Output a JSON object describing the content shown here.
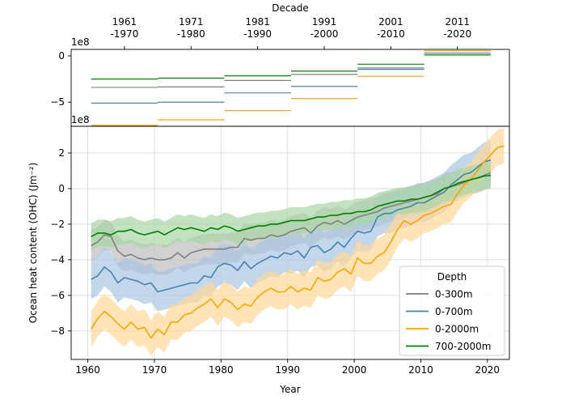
{
  "chart_data": [
    {
      "type": "line",
      "panel": "decadal",
      "top_xlabel": "Decade",
      "top_ticks": [
        "1961\n-1970",
        "1971\n-1980",
        "1981\n-1990",
        "1991\n-2000",
        "2001\n-2010",
        "2011\n-2020"
      ],
      "y_offset_label": "1e8",
      "yticks": [
        0,
        -5
      ],
      "ylim": [
        -7.6,
        0.7
      ],
      "decades": [
        [
          1961,
          1970
        ],
        [
          1971,
          1980
        ],
        [
          1981,
          1990
        ],
        [
          1991,
          2000
        ],
        [
          2001,
          2010
        ],
        [
          2011,
          2020
        ]
      ],
      "series": [
        {
          "name": "0-300m",
          "color": "#808080",
          "values": [
            -3.4,
            -3.35,
            -2.65,
            -2.0,
            -1.3,
            0.3
          ]
        },
        {
          "name": "0-700m",
          "color": "#4682b4",
          "values": [
            -5.1,
            -5.0,
            -4.0,
            -3.3,
            -1.45,
            0.3
          ]
        },
        {
          "name": "0-2000m",
          "color": "#ffa500",
          "values": [
            -7.5,
            -6.9,
            -5.9,
            -4.6,
            -2.2,
            0.55
          ]
        },
        {
          "name": "700-2000m",
          "color": "#008000",
          "values": [
            -2.5,
            -2.4,
            -2.15,
            -1.65,
            -0.9,
            0.1
          ]
        }
      ]
    },
    {
      "type": "line",
      "panel": "annual",
      "xlabel": "Year",
      "ylabel": "Ocean heat content (OHC) (Jm⁻²)",
      "xlim": [
        1957.5,
        2023.3
      ],
      "ylim": [
        -9.6,
        3.5
      ],
      "xticks": [
        1960,
        1970,
        1980,
        1990,
        2000,
        2010,
        2020
      ],
      "yticks": [
        2,
        0,
        -2,
        -4,
        -6,
        -8
      ],
      "grid": true,
      "legend_title": "Depth",
      "legend_position": "lower right",
      "x_start": 1960.5,
      "series": [
        {
          "name": "0-300m",
          "color": "#808080",
          "band_color": "#bdbdbd",
          "band_width": 0.85,
          "values": [
            -3.2,
            -3.0,
            -2.6,
            -2.7,
            -3.5,
            -3.8,
            -3.7,
            -3.9,
            -4.0,
            -3.9,
            -4.0,
            -4.0,
            -3.9,
            -3.6,
            -3.9,
            -3.6,
            -3.5,
            -3.4,
            -3.4,
            -3.4,
            -3.4,
            -3.3,
            -3.3,
            -2.8,
            -2.9,
            -2.8,
            -2.8,
            -2.6,
            -2.7,
            -2.6,
            -2.4,
            -2.3,
            -2.2,
            -2.5,
            -2.1,
            -1.9,
            -2.0,
            -1.8,
            -2.0,
            -1.8,
            -1.6,
            -1.5,
            -1.4,
            -1.3,
            -1.1,
            -1.0,
            -0.9,
            -0.8,
            -0.7,
            -0.6,
            -0.5,
            -0.4,
            -0.3,
            0.0,
            0.1,
            0.2,
            0.35,
            0.5,
            0.6,
            0.75,
            0.9
          ]
        },
        {
          "name": "0-700m",
          "color": "#4682b4",
          "band_color": "#a9c6e2",
          "band_width": 1.1,
          "values": [
            -5.1,
            -4.9,
            -4.4,
            -4.7,
            -5.3,
            -5.0,
            -5.1,
            -5.2,
            -5.4,
            -5.3,
            -5.8,
            -5.7,
            -5.6,
            -5.5,
            -5.4,
            -5.3,
            -5.3,
            -4.9,
            -5.0,
            -4.4,
            -4.2,
            -4.3,
            -4.6,
            -4.1,
            -4.5,
            -4.2,
            -4.0,
            -3.8,
            -3.9,
            -3.6,
            -3.7,
            -3.5,
            -3.9,
            -3.3,
            -3.2,
            -3.6,
            -3.4,
            -3.0,
            -3.3,
            -2.8,
            -2.4,
            -2.5,
            -2.4,
            -1.6,
            -1.4,
            -1.4,
            -1.2,
            -1.1,
            -1.0,
            -0.8,
            -0.8,
            -0.6,
            -0.4,
            -0.2,
            0.2,
            0.5,
            0.8,
            0.9,
            1.2,
            1.5,
            1.6
          ]
        },
        {
          "name": "0-2000m",
          "color": "#ffa500",
          "band_color": "#ffd99a",
          "band_width": 1.0,
          "values": [
            -7.9,
            -7.3,
            -6.9,
            -7.2,
            -7.6,
            -7.9,
            -7.5,
            -7.9,
            -7.8,
            -8.4,
            -7.9,
            -8.2,
            -7.5,
            -7.5,
            -7.1,
            -7.0,
            -6.7,
            -6.5,
            -6.2,
            -6.7,
            -6.2,
            -6.4,
            -6.8,
            -6.5,
            -6.6,
            -6.1,
            -5.8,
            -5.6,
            -5.8,
            -5.8,
            -5.5,
            -5.8,
            -5.6,
            -5.7,
            -5.0,
            -5.2,
            -5.1,
            -4.7,
            -4.5,
            -4.8,
            -3.9,
            -4.2,
            -4.2,
            -3.8,
            -3.6,
            -3.0,
            -2.3,
            -1.8,
            -2.0,
            -1.8,
            -1.5,
            -1.4,
            -1.2,
            -1.0,
            -0.9,
            -0.3,
            0.2,
            0.5,
            1.0,
            1.5,
            1.9,
            2.3,
            2.4
          ]
        },
        {
          "name": "700-2000m",
          "color": "#008000",
          "band_color": "#a9d5a4",
          "band_width": 0.75,
          "values": [
            -2.7,
            -2.5,
            -2.5,
            -2.6,
            -2.4,
            -2.4,
            -2.3,
            -2.5,
            -2.6,
            -2.5,
            -2.4,
            -2.6,
            -2.4,
            -2.2,
            -2.3,
            -2.2,
            -2.3,
            -2.4,
            -2.2,
            -2.3,
            -2.1,
            -2.2,
            -2.4,
            -2.3,
            -2.2,
            -2.1,
            -2.1,
            -2.0,
            -2.0,
            -1.9,
            -1.8,
            -1.8,
            -1.8,
            -1.7,
            -1.6,
            -1.6,
            -1.5,
            -1.5,
            -1.4,
            -1.4,
            -1.3,
            -1.3,
            -1.2,
            -1.0,
            -0.9,
            -0.8,
            -0.7,
            -0.7,
            -0.6,
            -0.6,
            -0.5,
            -0.4,
            -0.2,
            0.0,
            0.1,
            0.3,
            0.4,
            0.5,
            0.6,
            0.7,
            0.75
          ]
        }
      ]
    }
  ]
}
